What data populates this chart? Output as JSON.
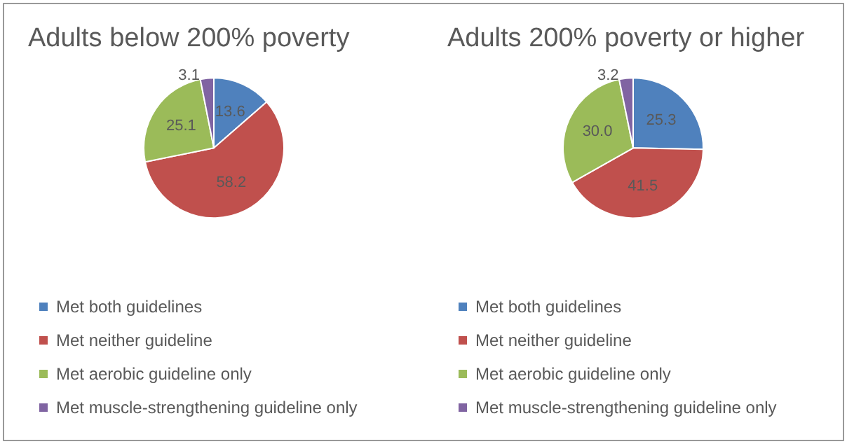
{
  "chart_data": [
    {
      "type": "pie",
      "title": "Adults below 200% poverty",
      "categories": [
        "Met both guidelines",
        "Met neither guideline",
        "Met aerobic guideline only",
        "Met muscle-strengthening guideline only"
      ],
      "values": [
        13.6,
        58.2,
        25.1,
        3.1
      ],
      "value_labels": [
        "13.6",
        "58.2",
        "25.1",
        "3.1"
      ],
      "colors": [
        "#4f81bd",
        "#c0504d",
        "#9bbb59",
        "#8064a2"
      ],
      "legend": "bottom"
    },
    {
      "type": "pie",
      "title": "Adults 200% poverty or higher",
      "categories": [
        "Met both guidelines",
        "Met neither guideline",
        "Met aerobic guideline only",
        "Met muscle-strengthening guideline only"
      ],
      "values": [
        25.3,
        41.5,
        30.0,
        3.2
      ],
      "value_labels": [
        "25.3",
        "41.5",
        "30.0",
        "3.2"
      ],
      "colors": [
        "#4f81bd",
        "#c0504d",
        "#9bbb59",
        "#8064a2"
      ],
      "legend": "bottom"
    }
  ]
}
